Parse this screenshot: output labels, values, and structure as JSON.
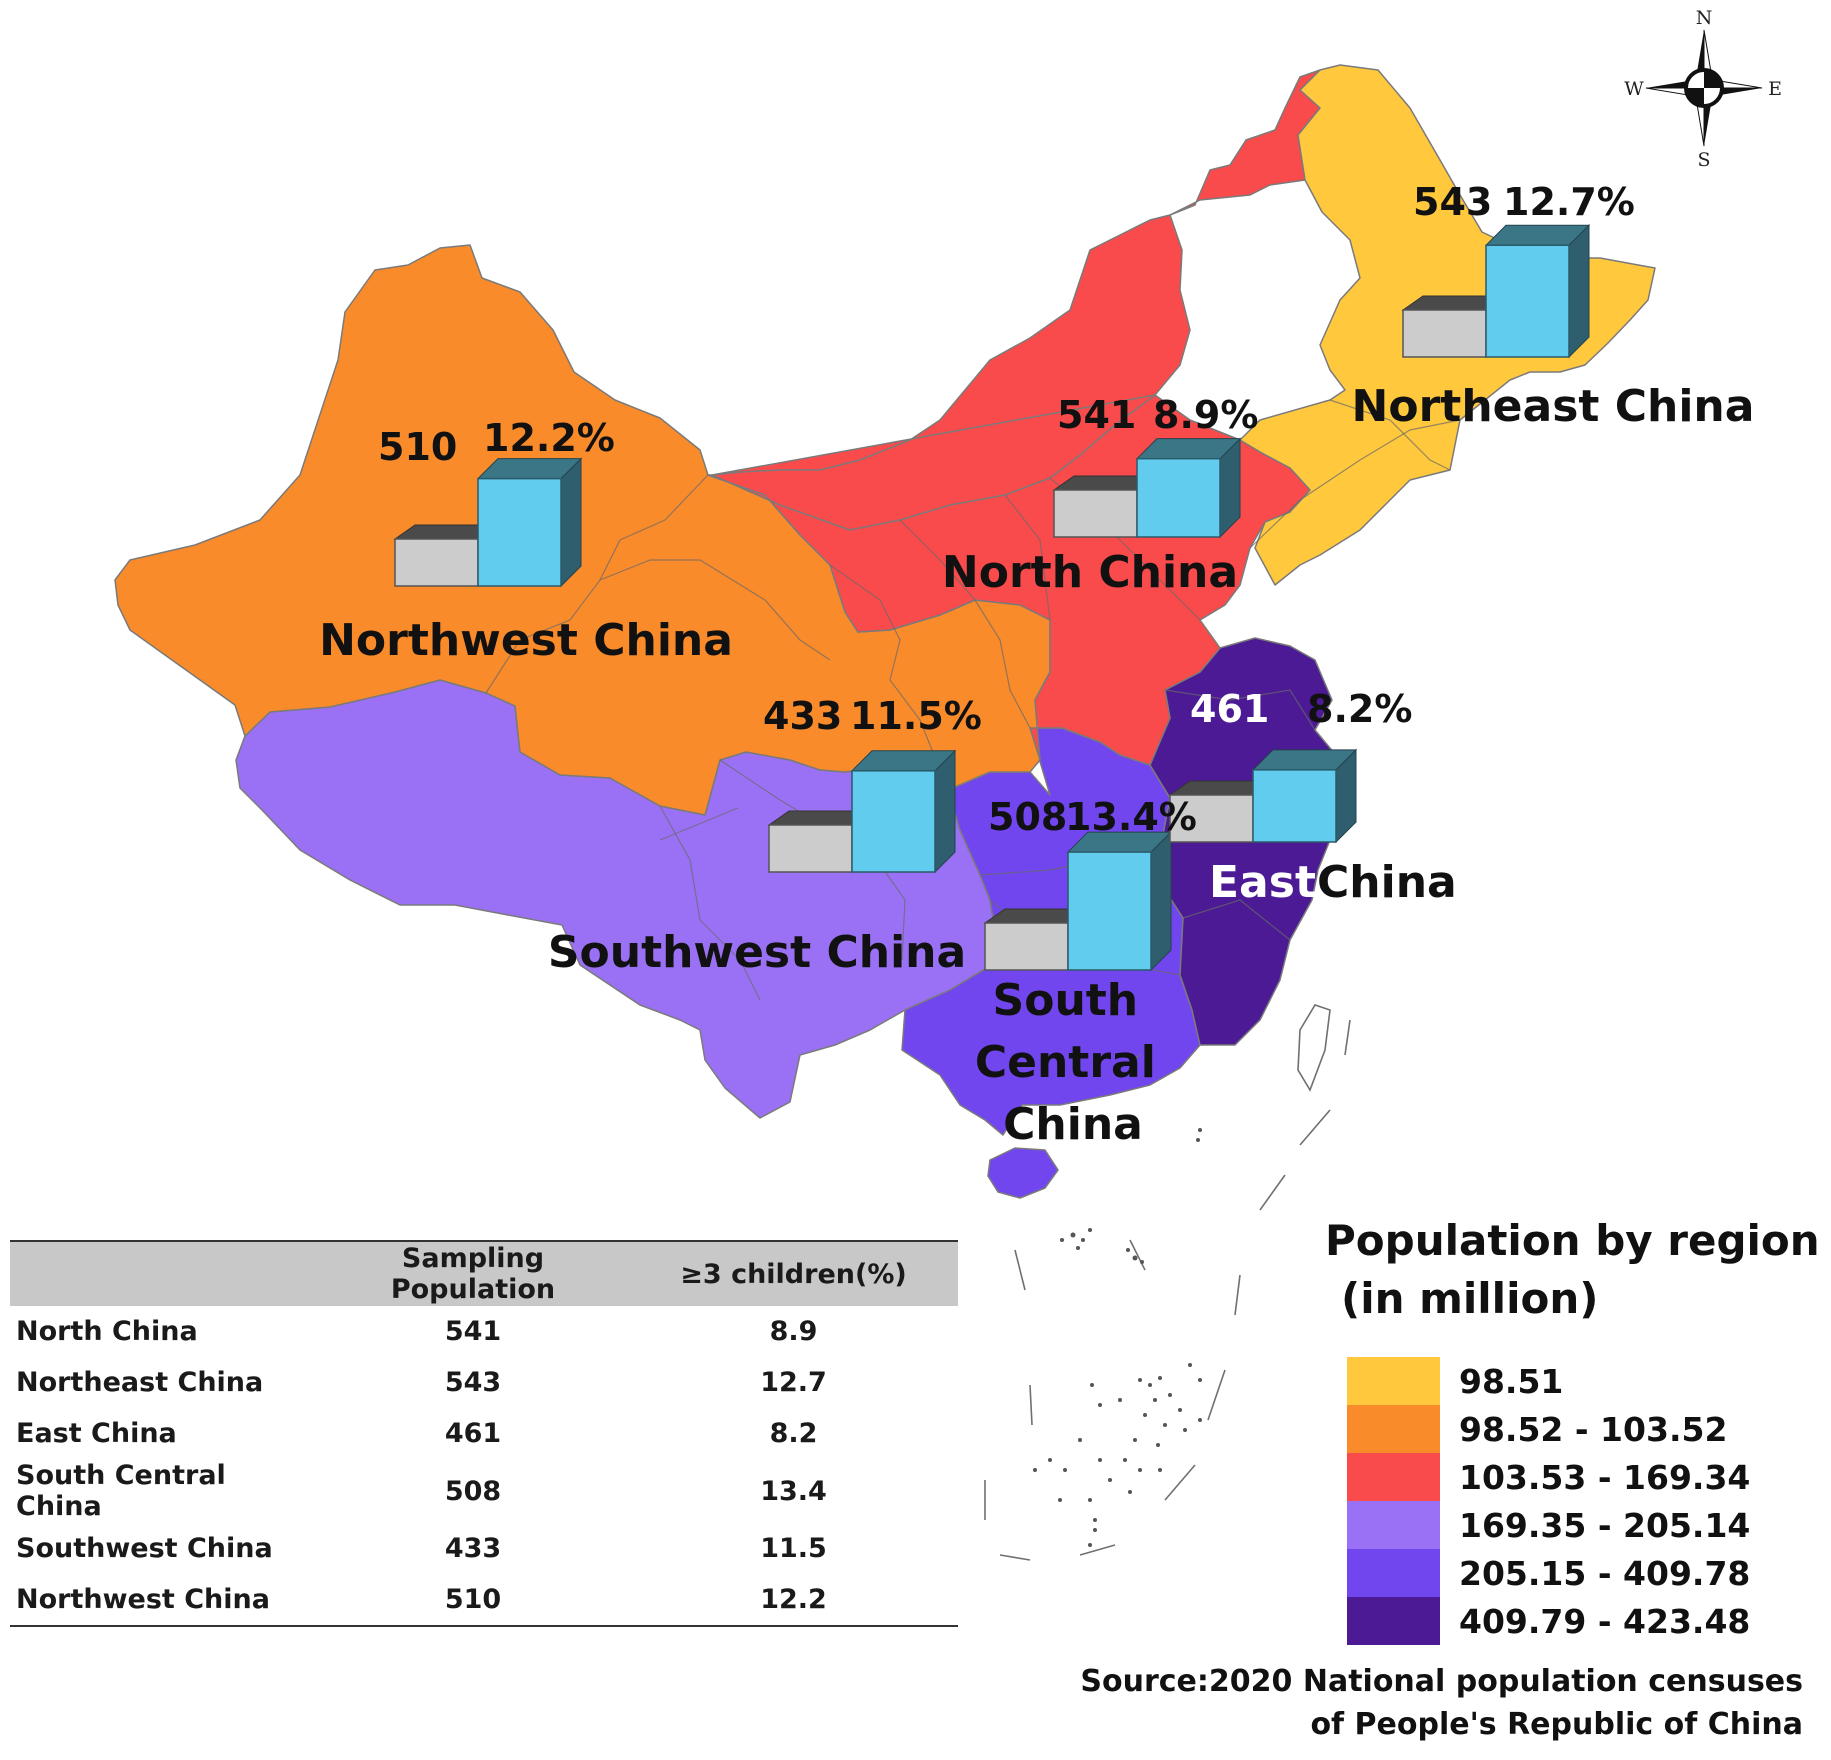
{
  "compass": {
    "n": "N",
    "s": "S",
    "e": "E",
    "w": "W"
  },
  "colors": {
    "c1": "#FFC83D",
    "c2": "#F98B2B",
    "c3": "#F94B4B",
    "c4": "#9A71F5",
    "c5": "#7246EE",
    "c6": "#4B1A94",
    "bar_gray": "#CCCCCC",
    "bar_blue": "#62CCEF"
  },
  "regions": [
    {
      "name": "Northeast China",
      "population": "543",
      "percent": "12.7%",
      "pop_value": 543,
      "pct_value": 12.7,
      "legend_class": 1
    },
    {
      "name": "North China",
      "population": "541",
      "percent": "8.9%",
      "pop_value": 541,
      "pct_value": 8.9,
      "legend_class": 3
    },
    {
      "name": "Northwest China",
      "population": "510",
      "percent": "12.2%",
      "pop_value": 510,
      "pct_value": 12.2,
      "legend_class": 2
    },
    {
      "name": "Southwest China",
      "population": "433",
      "percent": "11.5%",
      "pop_value": 433,
      "pct_value": 11.5,
      "legend_class": 4
    },
    {
      "name": "South Central China",
      "population": "508",
      "percent": "13.4%",
      "pop_value": 508,
      "pct_value": 13.4,
      "legend_class": 5
    },
    {
      "name": "East China",
      "population": "461",
      "percent": "8.2%",
      "pop_value": 461,
      "pct_value": 8.2,
      "legend_class": 6
    }
  ],
  "table": {
    "headers": [
      "",
      "Sampling Population",
      "≥3 children(%)"
    ],
    "rows": [
      [
        "North China",
        "541",
        "8.9"
      ],
      [
        "Northeast China",
        "543",
        "12.7"
      ],
      [
        "East China",
        "461",
        "8.2"
      ],
      [
        "South Central China",
        "508",
        "13.4"
      ],
      [
        "Southwest China",
        "433",
        "11.5"
      ],
      [
        "Northwest China",
        "510",
        "12.2"
      ]
    ]
  },
  "legend": {
    "title_line1": "Population by region",
    "title_line2": "(in million)",
    "items": [
      {
        "label": "98.51",
        "color": "#FFC83D"
      },
      {
        "label": "98.52 - 103.52",
        "color": "#F98B2B"
      },
      {
        "label": "103.53 - 169.34",
        "color": "#F94B4B"
      },
      {
        "label": "169.35 - 205.14",
        "color": "#9A71F5"
      },
      {
        "label": "205.15 - 409.78",
        "color": "#7246EE"
      },
      {
        "label": "409.79 - 423.48",
        "color": "#4B1A94"
      }
    ]
  },
  "source": {
    "line1": "Source:2020 National population censuses",
    "line2": "of People's Republic of China"
  }
}
